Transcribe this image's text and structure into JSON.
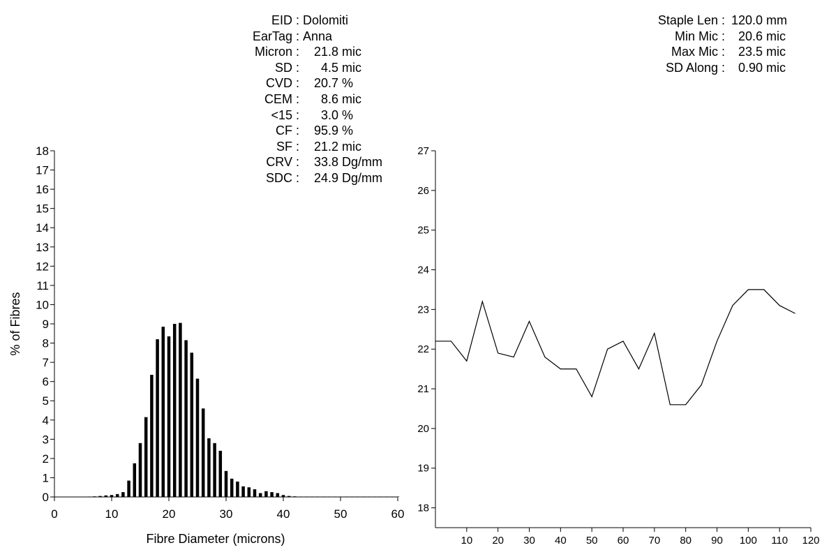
{
  "stats_left": [
    {
      "key": "EID",
      "value": "Dolomiti",
      "unit": ""
    },
    {
      "key": "EarTag",
      "value": "Anna",
      "unit": ""
    },
    {
      "key": "Micron",
      "value": "21.8",
      "unit": "mic"
    },
    {
      "key": "SD",
      "value": "4.5",
      "unit": "mic"
    },
    {
      "key": "CVD",
      "value": "20.7",
      "unit": "%"
    },
    {
      "key": "CEM",
      "value": "8.6",
      "unit": "mic"
    },
    {
      "key": "<15",
      "value": "3.0",
      "unit": "%"
    },
    {
      "key": "CF",
      "value": "95.9",
      "unit": "%"
    },
    {
      "key": "SF",
      "value": "21.2",
      "unit": "mic"
    },
    {
      "key": "CRV",
      "value": "33.8",
      "unit": "Dg/mm"
    },
    {
      "key": "SDC",
      "value": "24.9",
      "unit": "Dg/mm"
    }
  ],
  "stats_right": [
    {
      "key": "Staple Len",
      "value": "120.0",
      "unit": "mm"
    },
    {
      "key": "Min Mic",
      "value": "20.6",
      "unit": "mic"
    },
    {
      "key": "Max Mic",
      "value": "23.5",
      "unit": "mic"
    },
    {
      "key": "SD Along",
      "value": "0.90",
      "unit": "mic"
    }
  ],
  "chart_data": [
    {
      "type": "bar",
      "xlabel": "Fibre Diameter (microns)",
      "ylabel": "% of Fibres",
      "xlim": [
        0,
        60
      ],
      "ylim": [
        0,
        18
      ],
      "xticks": [
        0,
        10,
        20,
        30,
        40,
        50,
        60
      ],
      "yticks": [
        0,
        1,
        2,
        3,
        4,
        5,
        6,
        7,
        8,
        9,
        10,
        11,
        12,
        13,
        14,
        15,
        16,
        17,
        18
      ],
      "grid": false,
      "color": "#000000",
      "x": [
        1,
        2,
        3,
        4,
        5,
        6,
        7,
        8,
        9,
        10,
        11,
        12,
        13,
        14,
        15,
        16,
        17,
        18,
        19,
        20,
        21,
        22,
        23,
        24,
        25,
        26,
        27,
        28,
        29,
        30,
        31,
        32,
        33,
        34,
        35,
        36,
        37,
        38,
        39,
        40,
        41,
        42,
        43,
        44,
        45,
        46,
        47,
        48,
        49,
        50,
        51,
        52,
        53,
        54,
        55,
        56,
        57,
        58,
        59,
        60
      ],
      "values": [
        0,
        0,
        0,
        0,
        0,
        0.02,
        0.03,
        0.05,
        0.08,
        0.1,
        0.15,
        0.25,
        0.85,
        1.75,
        2.8,
        4.15,
        6.35,
        8.2,
        8.85,
        8.35,
        9.0,
        9.05,
        8.15,
        7.5,
        6.15,
        4.6,
        3.05,
        2.8,
        2.4,
        1.35,
        0.95,
        0.8,
        0.55,
        0.5,
        0.4,
        0.2,
        0.3,
        0.25,
        0.2,
        0.1,
        0.05,
        0.03,
        0.02,
        0.02,
        0.02,
        0.02,
        0.02,
        0.02,
        0.02,
        0.02,
        0.02,
        0.02,
        0.02,
        0.02,
        0.02,
        0.02,
        0.02,
        0.02,
        0.02,
        0.02
      ]
    },
    {
      "type": "line",
      "xlim": [
        0,
        120
      ],
      "ylim": [
        17.5,
        27
      ],
      "xticks": [
        10,
        20,
        30,
        40,
        50,
        60,
        70,
        80,
        90,
        100,
        110,
        120
      ],
      "yticks": [
        18,
        19,
        20,
        21,
        22,
        23,
        24,
        25,
        26,
        27
      ],
      "grid": false,
      "color": "#000000",
      "x": [
        0,
        5,
        10,
        15,
        20,
        25,
        30,
        35,
        40,
        45,
        50,
        55,
        60,
        65,
        70,
        75,
        80,
        85,
        90,
        95,
        100,
        105,
        110,
        115
      ],
      "y": [
        22.2,
        22.2,
        21.7,
        23.2,
        21.9,
        21.8,
        22.7,
        21.8,
        21.5,
        21.5,
        20.8,
        22.0,
        22.2,
        21.5,
        22.4,
        20.6,
        20.6,
        21.1,
        22.2,
        23.1,
        23.5,
        23.5,
        23.1,
        22.9
      ]
    }
  ]
}
